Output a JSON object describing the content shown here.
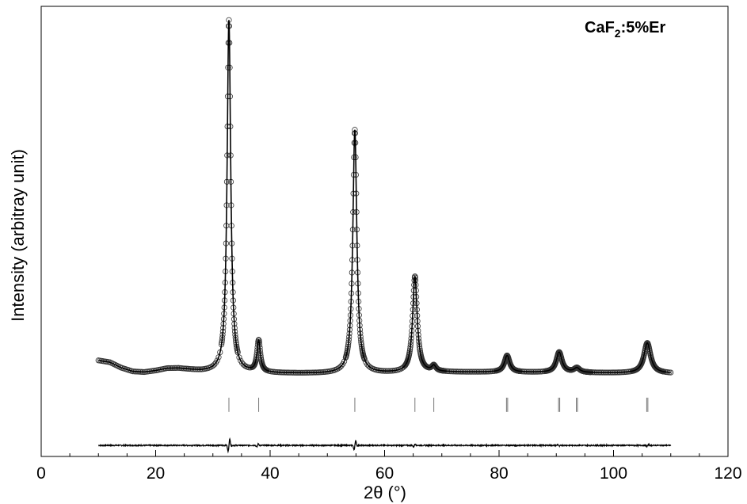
{
  "chart_data": {
    "type": "line",
    "title": "",
    "annotation": {
      "base": "CaF",
      "subscript": "2",
      "suffix": ":5%Er"
    },
    "xlabel": "2θ (°)",
    "ylabel": "Intensity (arbitray unit)",
    "xlim": [
      0,
      120
    ],
    "ylim": [
      -0.22,
      1.0
    ],
    "x_ticks": [
      0,
      20,
      40,
      60,
      80,
      100,
      120
    ],
    "x_minor_step": 5,
    "y_ticks_shown": false,
    "grid": false,
    "legend": "none",
    "colors": {
      "observed": "#333333",
      "calculated": "#000000",
      "difference": "#000000",
      "bragg": "#777777"
    },
    "background": [
      [
        10,
        0.04
      ],
      [
        12,
        0.035
      ],
      [
        14,
        0.02
      ],
      [
        16,
        0.01
      ],
      [
        18,
        0.008
      ],
      [
        20,
        0.012
      ],
      [
        22,
        0.018
      ],
      [
        24,
        0.018
      ],
      [
        26,
        0.014
      ],
      [
        28,
        0.01
      ],
      [
        30,
        0.008
      ],
      [
        40,
        0.005
      ],
      [
        50,
        0.004
      ],
      [
        60,
        0.005
      ],
      [
        70,
        0.008
      ],
      [
        80,
        0.008
      ],
      [
        90,
        0.007
      ],
      [
        100,
        0.006
      ],
      [
        110,
        0.005
      ]
    ],
    "peaks": [
      {
        "pos": 32.8,
        "height": 0.955,
        "width": 0.38
      },
      {
        "pos": 38.0,
        "height": 0.085,
        "width": 0.35
      },
      {
        "pos": 54.8,
        "height": 0.66,
        "width": 0.42
      },
      {
        "pos": 65.3,
        "height": 0.26,
        "width": 0.48
      },
      {
        "pos": 68.6,
        "height": 0.015,
        "width": 0.45
      },
      {
        "pos": 81.4,
        "height": 0.045,
        "width": 0.55
      },
      {
        "pos": 90.5,
        "height": 0.055,
        "width": 0.6
      },
      {
        "pos": 93.6,
        "height": 0.012,
        "width": 0.6
      },
      {
        "pos": 105.9,
        "height": 0.082,
        "width": 0.7
      }
    ],
    "observed_x_range": [
      10,
      110
    ],
    "bragg_positions": [
      32.8,
      38.0,
      54.8,
      65.3,
      68.6,
      81.3,
      81.5,
      90.4,
      90.6,
      93.5,
      93.7,
      105.8,
      106.0
    ],
    "bragg_y": -0.08,
    "difference": {
      "offset": -0.19,
      "features": [
        {
          "pos": 32.8,
          "amp": 0.022
        },
        {
          "pos": 37.8,
          "amp": 0.006
        },
        {
          "pos": 54.8,
          "amp": 0.016
        },
        {
          "pos": 65.2,
          "amp": 0.005
        },
        {
          "pos": 90.4,
          "amp": -0.003
        },
        {
          "pos": 106.0,
          "amp": 0.003
        }
      ]
    }
  }
}
